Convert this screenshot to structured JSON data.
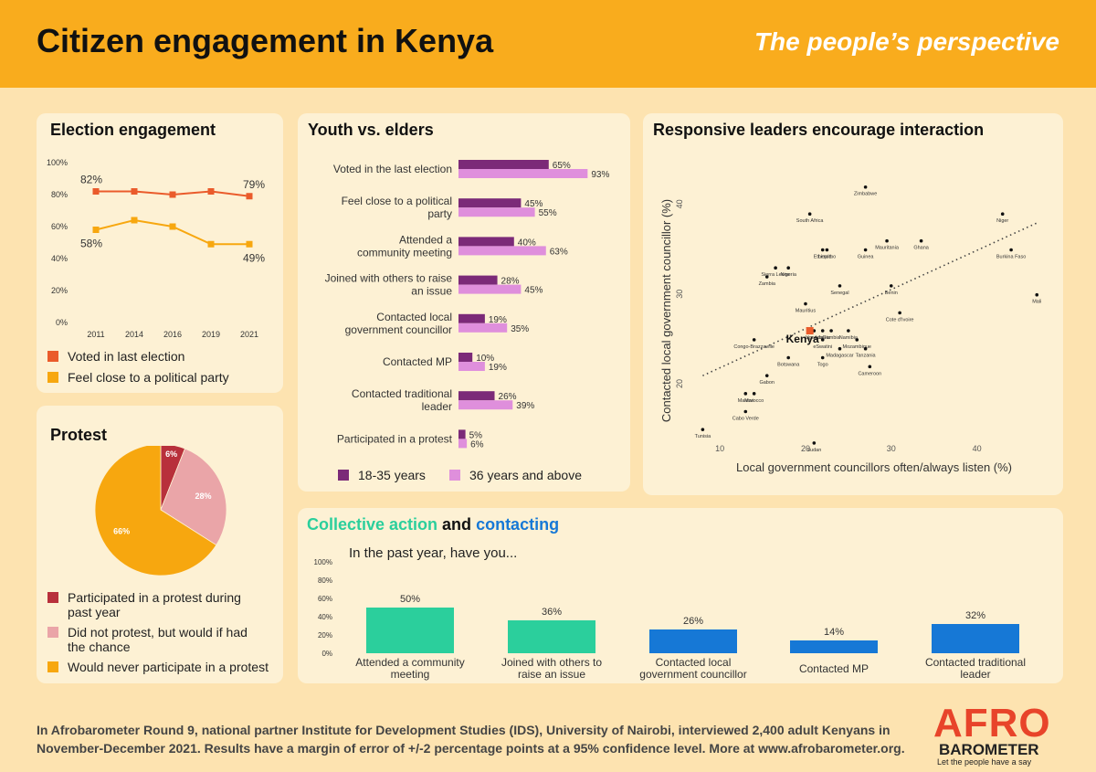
{
  "header": {
    "title": "Citizen engagement in Kenya",
    "subtitle": "The people’s perspective"
  },
  "colors": {
    "header_bg": "#f9ac1d",
    "page_bg": "#fde3b0",
    "card_bg": "#fdf1d4",
    "red_orange": "#ea5b2b",
    "orange": "#f7a70f",
    "purple": "#7b2a78",
    "pink": "#df8fdc",
    "teal": "#2bcf9c",
    "blue": "#1678d6",
    "dark_red": "#b8303b",
    "light_pink": "#eaa5a8",
    "kenya": "#ea5b2b"
  },
  "election": {
    "title": "Election engagement",
    "legend": [
      "Voted in last election",
      "Feel close to a political party"
    ],
    "chart_data": {
      "type": "line",
      "title": "Election engagement",
      "x": [
        "2011",
        "2014",
        "2016",
        "2019",
        "2021"
      ],
      "y_ticks": [
        "100%",
        "80%",
        "60%",
        "40%",
        "20%",
        "0%"
      ],
      "ylim": [
        0,
        100
      ],
      "series": [
        {
          "name": "Voted in last election",
          "values": [
            82,
            82,
            80,
            82,
            79
          ],
          "labels": [
            "82%",
            "",
            "",
            "",
            "79%"
          ]
        },
        {
          "name": "Feel close to a political party",
          "values": [
            58,
            64,
            60,
            49,
            49
          ],
          "labels": [
            "58%",
            "",
            "",
            "",
            "49%"
          ]
        }
      ]
    }
  },
  "youth": {
    "title": "Youth vs. elders",
    "legend": [
      "18-35 years",
      "36 years and above"
    ],
    "chart_data": {
      "type": "bar",
      "title": "Youth vs. elders",
      "categories": [
        [
          "Voted in the last election"
        ],
        [
          "Feel close to a political",
          "party"
        ],
        [
          "Attended a",
          "community meeting"
        ],
        [
          "Joined with others to raise",
          "an issue"
        ],
        [
          "Contacted local",
          "government councillor"
        ],
        [
          "Contacted MP"
        ],
        [
          "Contacted traditional",
          "leader"
        ],
        [
          "Participated in a protest"
        ]
      ],
      "series": [
        {
          "name": "18-35 years",
          "values": [
            65,
            45,
            40,
            28,
            19,
            10,
            26,
            5
          ]
        },
        {
          "name": "36 years and above",
          "values": [
            93,
            55,
            63,
            45,
            35,
            19,
            39,
            6
          ]
        }
      ]
    }
  },
  "scatter": {
    "title": "Responsive leaders encourage interaction",
    "chart_data": {
      "type": "scatter",
      "title": "Responsive leaders encourage interaction",
      "xlabel": "Local government councillors often/always listen (%)",
      "ylabel": "Contacted local government councillor (%)",
      "xlim": [
        7,
        49
      ],
      "ylim": [
        14,
        43.5
      ],
      "x_ticks": [
        "10",
        "20",
        "30",
        "40"
      ],
      "y_ticks": [
        "20",
        "30",
        "40"
      ],
      "highlight": "Kenya",
      "points": [
        {
          "name": "Zimbabwe",
          "x": 27,
          "y": 42
        },
        {
          "name": "South Africa",
          "x": 20.5,
          "y": 39
        },
        {
          "name": "Niger",
          "x": 43,
          "y": 39
        },
        {
          "name": "Ethiopia",
          "x": 22,
          "y": 35
        },
        {
          "name": "Guinea",
          "x": 27,
          "y": 35
        },
        {
          "name": "Mauritania",
          "x": 29.5,
          "y": 36
        },
        {
          "name": "Ghana",
          "x": 33.5,
          "y": 36
        },
        {
          "name": "Burkina Faso",
          "x": 44,
          "y": 35
        },
        {
          "name": "Lesotho",
          "x": 22.5,
          "y": 35
        },
        {
          "name": "Sierra Leone",
          "x": 16.5,
          "y": 33
        },
        {
          "name": "Nigeria",
          "x": 18,
          "y": 33
        },
        {
          "name": "Zambia",
          "x": 15.5,
          "y": 32
        },
        {
          "name": "Senegal",
          "x": 24,
          "y": 31
        },
        {
          "name": "Benin",
          "x": 30,
          "y": 31
        },
        {
          "name": "Mauritius",
          "x": 20,
          "y": 29
        },
        {
          "name": "Mali",
          "x": 47,
          "y": 30
        },
        {
          "name": "Cote d'Ivoire",
          "x": 31,
          "y": 28
        },
        {
          "name": "Uganda",
          "x": 21,
          "y": 26
        },
        {
          "name": "Namibia",
          "x": 25,
          "y": 26
        },
        {
          "name": "Liberia",
          "x": 22,
          "y": 26
        },
        {
          "name": "eSwatini",
          "x": 22,
          "y": 25
        },
        {
          "name": "Gambia",
          "x": 23,
          "y": 26
        },
        {
          "name": "Mozambique",
          "x": 26,
          "y": 25
        },
        {
          "name": "Congo-Brazzaville",
          "x": 14,
          "y": 25
        },
        {
          "name": "Botswana",
          "x": 18,
          "y": 23
        },
        {
          "name": "Madagascar",
          "x": 24,
          "y": 24
        },
        {
          "name": "Tanzania",
          "x": 27,
          "y": 24
        },
        {
          "name": "Togo",
          "x": 22,
          "y": 23
        },
        {
          "name": "Cameroon",
          "x": 27.5,
          "y": 22
        },
        {
          "name": "Gabon",
          "x": 15.5,
          "y": 21
        },
        {
          "name": "Malawi",
          "x": 13,
          "y": 19
        },
        {
          "name": "Morocco",
          "x": 14,
          "y": 19
        },
        {
          "name": "Cabo Verde",
          "x": 13,
          "y": 17
        },
        {
          "name": "Tunisia",
          "x": 8,
          "y": 15
        },
        {
          "name": "Sudan",
          "x": 21,
          "y": 13.5
        },
        {
          "name": "Kenya",
          "x": 20.5,
          "y": 26
        }
      ],
      "trendline": {
        "from": [
          8,
          21
        ],
        "to": [
          47,
          38
        ]
      }
    }
  },
  "protest": {
    "title": "Protest",
    "legend": [
      "Participated in a protest during past year",
      "Did not protest, but would if had the chance",
      "Would never participate in a protest"
    ],
    "chart_data": {
      "type": "pie",
      "title": "Protest",
      "labels": [
        "Participated in a protest during past year",
        "Did not protest, but would if had the chance",
        "Would never participate in a protest"
      ],
      "values": [
        6,
        28,
        66
      ],
      "value_labels": [
        "6%",
        "28%",
        "66%"
      ]
    }
  },
  "collective": {
    "title_part1": "Collective action",
    "title_and": " and ",
    "title_part2": "contacting",
    "question": "In the past year, have you...",
    "chart_data": {
      "type": "bar",
      "title": "Collective action and contacting",
      "categories": [
        [
          "Attended a community",
          "meeting"
        ],
        [
          "Joined with others to",
          "raise an issue"
        ],
        [
          "Contacted local",
          "government councillor"
        ],
        [
          "Contacted MP"
        ],
        [
          "Contacted traditional",
          "leader"
        ]
      ],
      "values": [
        50,
        36,
        26,
        14,
        32
      ],
      "groups": [
        "Collective action",
        "Collective action",
        "contacting",
        "contacting",
        "contacting"
      ],
      "y_ticks": [
        "100%",
        "80%",
        "60%",
        "40%",
        "20%",
        "0%"
      ],
      "ylim": [
        0,
        100
      ]
    }
  },
  "footer": {
    "text": "In Afrobarometer Round 9, national partner Institute for Development Studies (IDS), University of Nairobi, interviewed 2,400 adult Kenyans in November-December 2021. Results have a margin of error of +/-2 percentage points at a 95% confidence level. More at www.afrobarometer.org."
  },
  "logo": {
    "main": "AFRO",
    "sub": "BAROMETER",
    "tagline": "Let the people have a say"
  }
}
